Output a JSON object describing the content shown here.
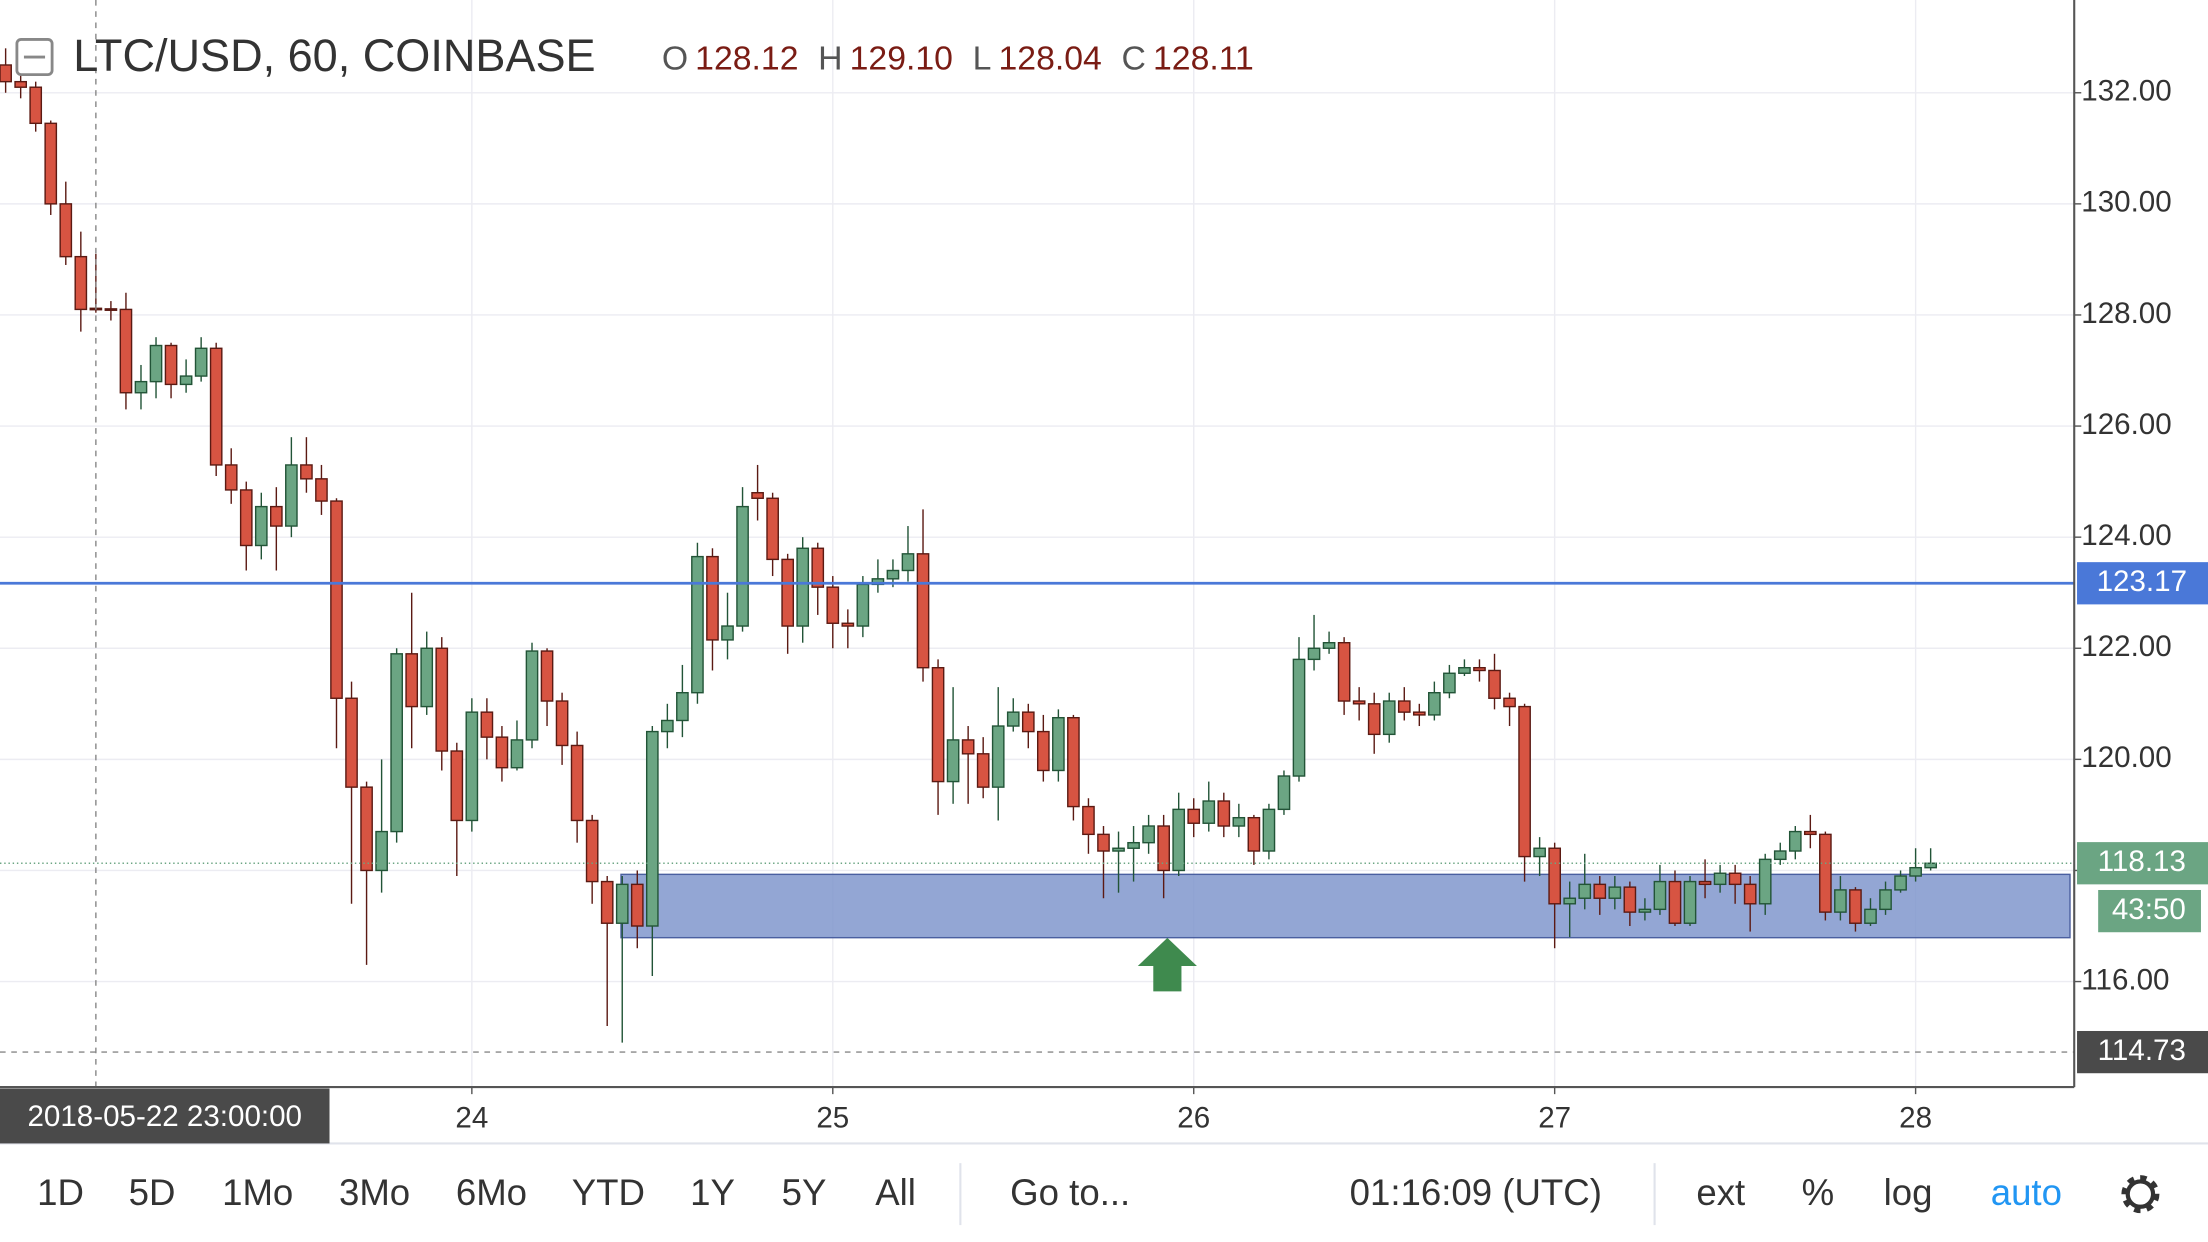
{
  "chart_data": {
    "type": "candlestick",
    "title": "LTC/USD, 60, COINBASE",
    "legend": [
      {
        "key": "O",
        "value": 128.12
      },
      {
        "key": "H",
        "value": 129.1,
        "label": "129.10"
      },
      {
        "key": "L",
        "value": 128.04
      },
      {
        "key": "C",
        "value": 128.11
      }
    ],
    "categories": [
      null,
      null,
      null,
      null,
      null,
      null,
      null,
      null,
      null,
      null,
      null,
      null,
      null,
      null,
      null,
      null,
      null,
      null,
      null,
      null,
      null,
      null,
      null,
      null,
      null,
      null,
      null,
      null,
      null,
      null,
      null,
      "24",
      null,
      null,
      null,
      null,
      null,
      null,
      null,
      null,
      null,
      null,
      null,
      null,
      null,
      null,
      null,
      null,
      null,
      null,
      null,
      null,
      null,
      null,
      null,
      "25",
      null,
      null,
      null,
      null,
      null,
      null,
      null,
      null,
      null,
      null,
      null,
      null,
      null,
      null,
      null,
      null,
      null,
      null,
      null,
      null,
      null,
      null,
      null,
      "26",
      null,
      null,
      null,
      null,
      null,
      null,
      null,
      null,
      null,
      null,
      null,
      null,
      null,
      null,
      null,
      null,
      null,
      null,
      null,
      null,
      null,
      null,
      null,
      "27",
      null,
      null,
      null,
      null,
      null,
      null,
      null,
      null,
      null,
      null,
      null,
      null,
      null,
      null,
      null,
      null,
      null,
      null,
      null,
      null,
      null,
      null,
      null,
      "28",
      null
    ],
    "open": [
      132.5,
      132.2,
      132.1,
      131.45,
      130.0,
      129.05,
      128.12,
      128.11,
      128.1,
      126.6,
      126.8,
      127.45,
      126.75,
      126.9,
      127.4,
      125.3,
      124.85,
      123.85,
      124.55,
      124.2,
      125.3,
      125.05,
      124.65,
      121.1,
      119.5,
      118.0,
      118.7,
      121.9,
      120.95,
      122.0,
      120.15,
      118.9,
      120.85,
      120.4,
      119.85,
      120.35,
      121.95,
      121.05,
      120.25,
      118.9,
      117.8,
      117.05,
      117.75,
      117.0,
      120.5,
      120.7,
      121.2,
      123.65,
      122.15,
      122.4,
      124.8,
      124.7,
      123.6,
      122.4,
      123.8,
      123.1,
      122.45,
      122.4,
      123.15,
      123.25,
      123.4,
      123.7,
      121.65,
      119.6,
      120.35,
      120.1,
      119.5,
      120.6,
      120.85,
      120.5,
      119.8,
      120.75,
      119.15,
      118.65,
      118.35,
      118.4,
      118.5,
      118.8,
      118.0,
      119.1,
      118.85,
      119.25,
      118.8,
      118.95,
      118.35,
      119.1,
      119.7,
      121.8,
      122.0,
      122.1,
      121.05,
      121.0,
      120.45,
      121.05,
      120.85,
      120.8,
      121.2,
      121.55,
      121.65,
      121.6,
      121.1,
      120.95,
      118.25,
      118.4,
      117.4,
      117.5,
      117.75,
      117.5,
      117.7,
      117.25,
      117.3,
      117.8,
      117.05,
      117.8,
      117.75,
      117.95,
      117.75,
      117.4,
      118.2,
      118.35,
      118.7,
      118.65,
      117.25,
      117.65,
      117.05,
      117.3,
      117.65,
      117.9,
      118.05
    ],
    "high": [
      132.8,
      132.4,
      132.2,
      131.5,
      130.4,
      129.5,
      129.1,
      128.25,
      128.4,
      127.1,
      127.6,
      127.5,
      127.2,
      127.6,
      127.5,
      125.6,
      125.0,
      124.8,
      124.9,
      125.8,
      125.8,
      125.3,
      124.7,
      121.4,
      119.6,
      120.0,
      122.0,
      123.0,
      122.3,
      122.2,
      120.3,
      121.1,
      121.1,
      120.6,
      120.7,
      122.1,
      122.0,
      121.2,
      120.5,
      119.0,
      117.9,
      117.9,
      118.0,
      120.6,
      121.0,
      121.7,
      123.9,
      123.8,
      123.0,
      124.9,
      125.3,
      124.8,
      123.7,
      124.0,
      123.9,
      123.3,
      122.7,
      123.3,
      123.6,
      123.6,
      124.2,
      124.5,
      121.8,
      121.3,
      120.6,
      120.4,
      121.3,
      121.1,
      121.0,
      120.8,
      120.9,
      120.8,
      119.3,
      118.8,
      118.7,
      118.8,
      119.0,
      119.0,
      119.4,
      119.3,
      119.6,
      119.4,
      119.2,
      119.0,
      119.2,
      119.8,
      122.2,
      122.6,
      122.3,
      122.2,
      121.3,
      121.2,
      121.2,
      121.3,
      121.0,
      121.4,
      121.7,
      121.8,
      121.8,
      121.9,
      121.2,
      121.0,
      118.6,
      118.5,
      117.8,
      118.3,
      117.9,
      117.9,
      117.8,
      117.5,
      118.1,
      118.0,
      117.9,
      118.2,
      118.1,
      118.1,
      117.9,
      118.3,
      118.5,
      118.8,
      119.0,
      118.7,
      117.9,
      117.7,
      117.5,
      117.8,
      118.0,
      118.4,
      118.4
    ],
    "low": [
      132.0,
      131.9,
      131.3,
      129.8,
      128.9,
      127.7,
      128.04,
      127.9,
      126.3,
      126.3,
      126.5,
      126.5,
      126.6,
      126.8,
      125.1,
      124.6,
      123.4,
      123.6,
      123.4,
      124.0,
      124.8,
      124.4,
      120.2,
      117.4,
      116.3,
      117.6,
      118.5,
      120.2,
      120.8,
      119.8,
      117.9,
      118.7,
      120.0,
      119.6,
      119.8,
      120.2,
      120.6,
      119.9,
      118.5,
      117.4,
      115.2,
      114.9,
      116.6,
      116.1,
      120.2,
      120.4,
      121.0,
      121.6,
      121.8,
      122.3,
      124.3,
      123.3,
      121.9,
      122.1,
      122.6,
      122.0,
      122.0,
      122.2,
      123.0,
      123.1,
      123.2,
      121.4,
      119.0,
      119.2,
      119.2,
      119.3,
      118.9,
      120.5,
      120.2,
      119.6,
      119.6,
      118.9,
      118.3,
      117.5,
      117.6,
      117.8,
      118.3,
      117.5,
      117.9,
      118.6,
      118.7,
      118.6,
      118.6,
      118.1,
      118.2,
      119.0,
      119.6,
      121.6,
      121.9,
      120.8,
      120.7,
      120.1,
      120.3,
      120.7,
      120.6,
      120.7,
      121.1,
      121.5,
      121.4,
      120.9,
      120.6,
      117.8,
      117.9,
      116.6,
      116.8,
      117.3,
      117.2,
      117.3,
      117.0,
      117.1,
      117.2,
      117.0,
      117.0,
      117.5,
      117.6,
      117.4,
      116.9,
      117.2,
      118.1,
      118.2,
      118.4,
      117.1,
      117.1,
      116.9,
      117.0,
      117.2,
      117.6,
      117.8,
      118.0
    ],
    "close": [
      132.2,
      132.1,
      131.45,
      130.0,
      129.05,
      128.1,
      128.11,
      128.1,
      126.6,
      126.8,
      127.45,
      126.75,
      126.9,
      127.4,
      125.3,
      124.85,
      123.85,
      124.55,
      124.2,
      125.3,
      125.05,
      124.65,
      121.1,
      119.5,
      118.0,
      118.7,
      121.9,
      120.95,
      122.0,
      120.15,
      118.9,
      120.85,
      120.4,
      119.85,
      120.35,
      121.95,
      121.05,
      120.25,
      118.9,
      117.8,
      117.05,
      117.75,
      117.0,
      120.5,
      120.7,
      121.2,
      123.65,
      122.15,
      122.4,
      124.55,
      124.7,
      123.6,
      122.4,
      123.8,
      123.1,
      122.45,
      122.4,
      123.15,
      123.25,
      123.4,
      123.7,
      121.65,
      119.6,
      120.35,
      120.1,
      119.5,
      120.6,
      120.85,
      120.5,
      119.8,
      120.75,
      119.15,
      118.65,
      118.35,
      118.4,
      118.5,
      118.8,
      118.0,
      119.1,
      118.85,
      119.25,
      118.8,
      118.95,
      118.35,
      119.1,
      119.7,
      121.8,
      122.0,
      122.1,
      121.05,
      121.0,
      120.45,
      121.05,
      120.85,
      120.8,
      121.2,
      121.55,
      121.65,
      121.6,
      121.1,
      120.95,
      118.25,
      118.4,
      117.4,
      117.5,
      117.75,
      117.5,
      117.7,
      117.25,
      117.3,
      117.8,
      117.05,
      117.8,
      117.75,
      117.95,
      117.75,
      117.4,
      118.2,
      118.35,
      118.7,
      118.65,
      117.25,
      117.65,
      117.05,
      117.3,
      117.65,
      117.9,
      118.05,
      118.13
    ],
    "up_color": "#6ba583",
    "up_border": "#225437",
    "down_color": "#d75442",
    "down_border": "#5b1a13",
    "ylim": [
      114.1,
      133.67
    ],
    "yticks": [
      {
        "value": 116,
        "label": "116.00"
      },
      {
        "value": 118,
        "label": "118.00"
      },
      {
        "value": 120,
        "label": "120.00"
      },
      {
        "value": 122,
        "label": "122.00"
      },
      {
        "value": 124,
        "label": "124.00"
      },
      {
        "value": 126,
        "label": "126.00"
      },
      {
        "value": 128,
        "label": "128.00"
      },
      {
        "value": 130,
        "label": "130.00"
      },
      {
        "value": 132,
        "label": "132.00"
      }
    ],
    "grid": true,
    "horizontal_line": {
      "value": 123.17,
      "label": "123.17",
      "color": "#4a78d8"
    },
    "zone": {
      "low": 116.79,
      "high": 117.93,
      "color": "#8096cc"
    },
    "last_price": {
      "value": 118.13,
      "label": "118.13",
      "countdown": "43:50"
    },
    "crosshair": {
      "time": "2018-05-22 23:00:00",
      "price": 114.73
    },
    "toolbar": {
      "ranges": [
        "1D",
        "5D",
        "1Mo",
        "3Mo",
        "6Mo",
        "YTD",
        "1Y",
        "5Y",
        "All"
      ],
      "goto": "Go to...",
      "clock": "01:16:09 (UTC)",
      "options": [
        "ext",
        "%",
        "log",
        "auto"
      ]
    }
  }
}
